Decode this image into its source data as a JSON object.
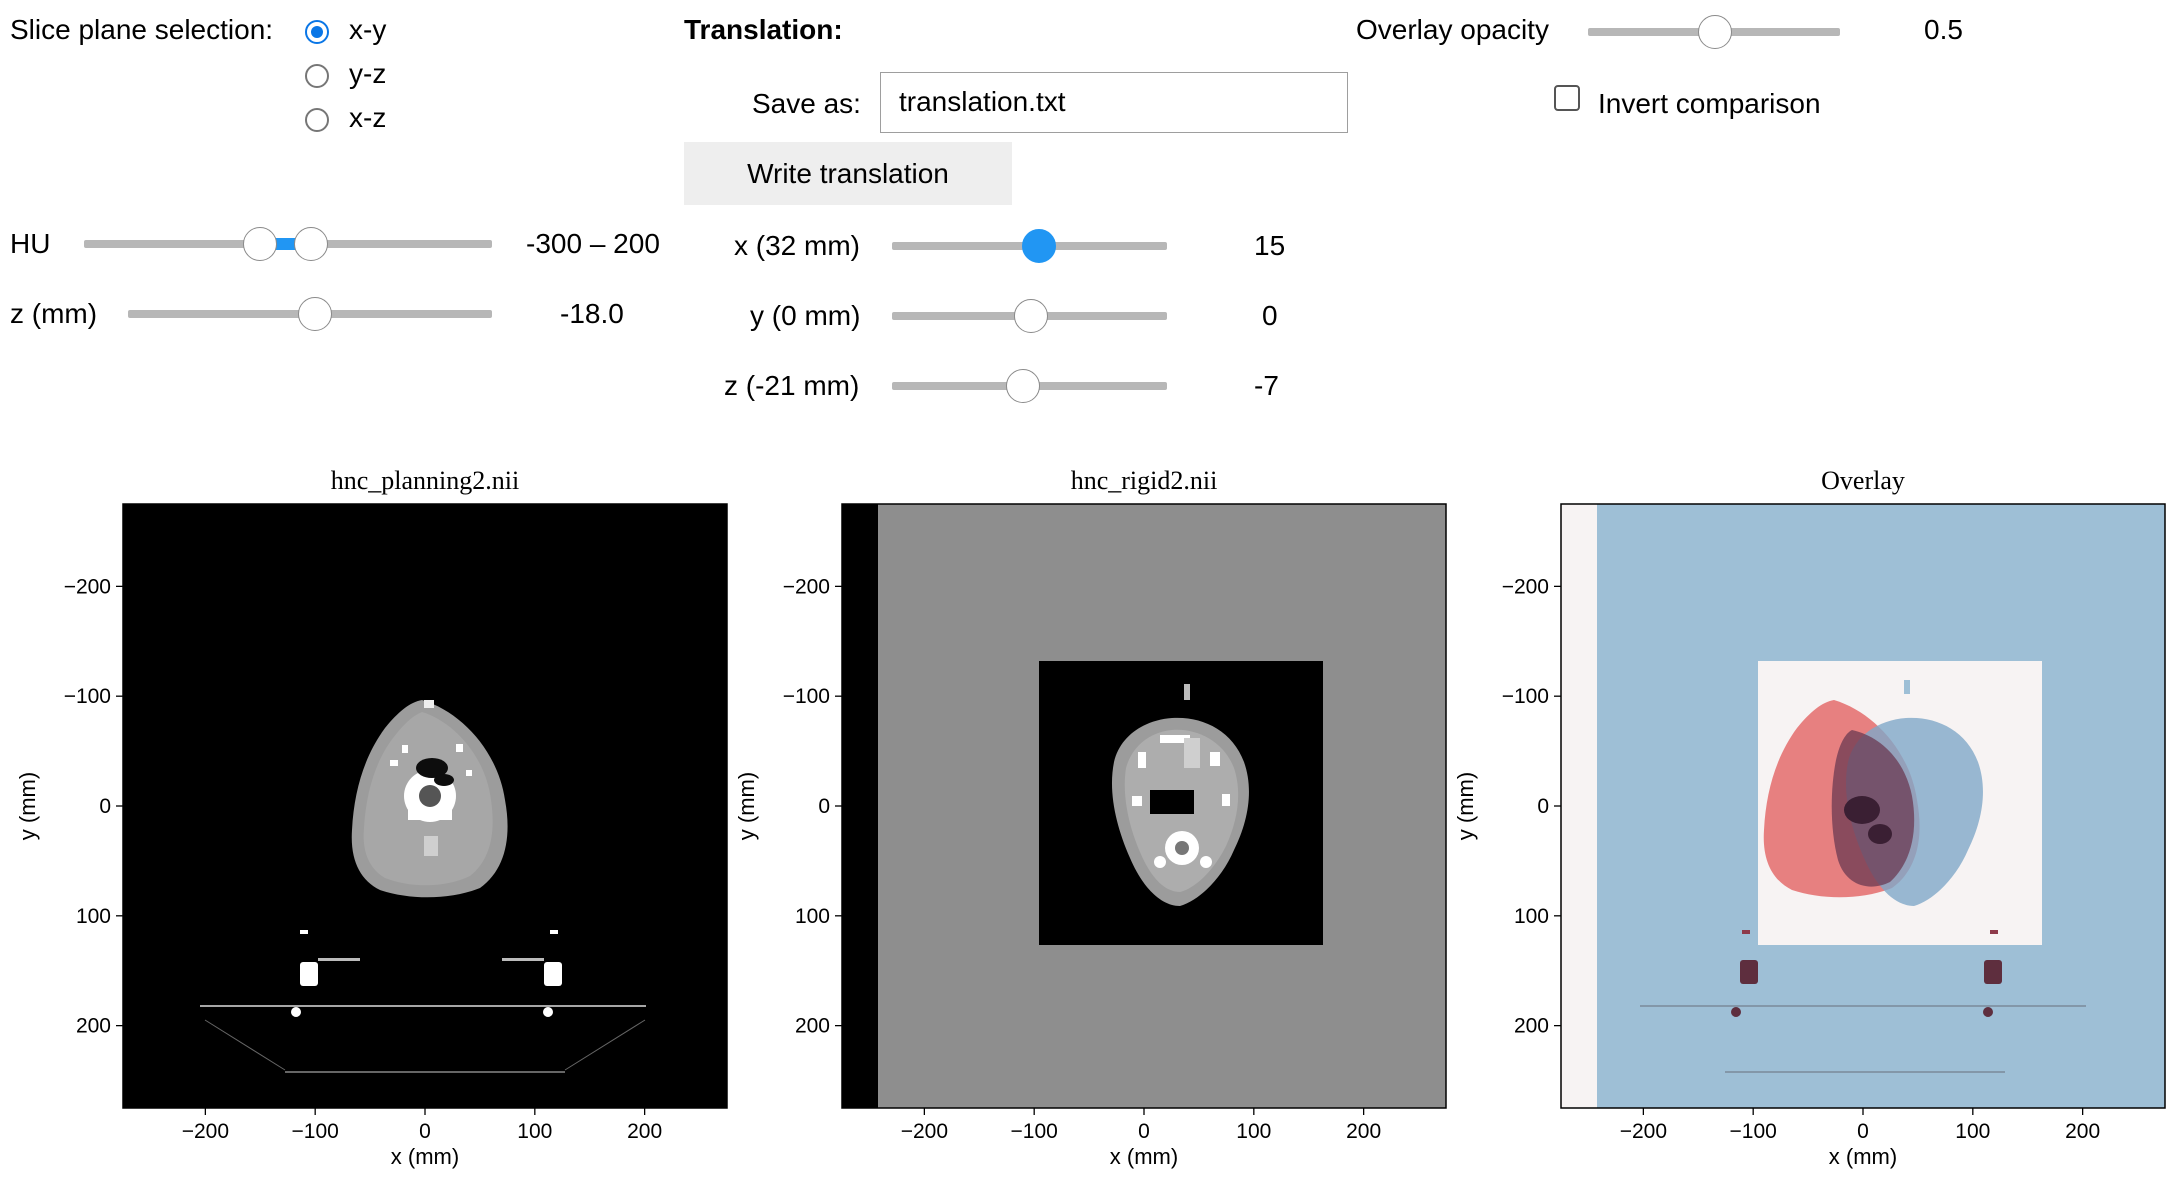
{
  "slice_plane": {
    "label": "Slice plane selection:",
    "options": [
      "x-y",
      "y-z",
      "x-z"
    ],
    "selected": "x-y"
  },
  "hu": {
    "label": "HU",
    "value": "-300 – 200",
    "low": -300,
    "high": 200
  },
  "z_slider": {
    "label": "z (mm)",
    "value": "-18.0"
  },
  "translation": {
    "title": "Translation:",
    "save_as_label": "Save as:",
    "filename": "translation.txt",
    "write_button": "Write translation",
    "x": {
      "label": "x (32 mm)",
      "value": "15"
    },
    "y": {
      "label": "y (0 mm)",
      "value": "0"
    },
    "z": {
      "label": "z (-21 mm)",
      "value": "-7"
    }
  },
  "overlay_opacity": {
    "label": "Overlay opacity",
    "value": "0.5"
  },
  "invert_comparison": {
    "label": "Invert comparison",
    "checked": false
  },
  "colors": {
    "accent": "#2196f3",
    "overlay_blue": "#9ebfd6",
    "overlay_red": "#e15a5a",
    "rigid_background": "#8e8e8e"
  },
  "plots": {
    "planning": {
      "title": "hnc_planning2.nii"
    },
    "rigid": {
      "title": "hnc_rigid2.nii"
    },
    "overlay": {
      "title": "Overlay"
    },
    "xlabel": "x (mm)",
    "ylabel": "y (mm)",
    "xticks": [
      "−200",
      "−100",
      "0",
      "100",
      "200"
    ],
    "yticks": [
      "−200",
      "−100",
      "0",
      "100",
      "200"
    ]
  },
  "chart_data": {
    "type": "heatmap",
    "xlim": [
      -275,
      275
    ],
    "ylim": [
      275,
      -275
    ],
    "xticks": [
      -200,
      -100,
      0,
      100,
      200
    ],
    "yticks": [
      -200,
      -100,
      0,
      100,
      200
    ],
    "panels": [
      "hnc_planning2.nii",
      "hnc_rigid2.nii",
      "Overlay"
    ]
  }
}
